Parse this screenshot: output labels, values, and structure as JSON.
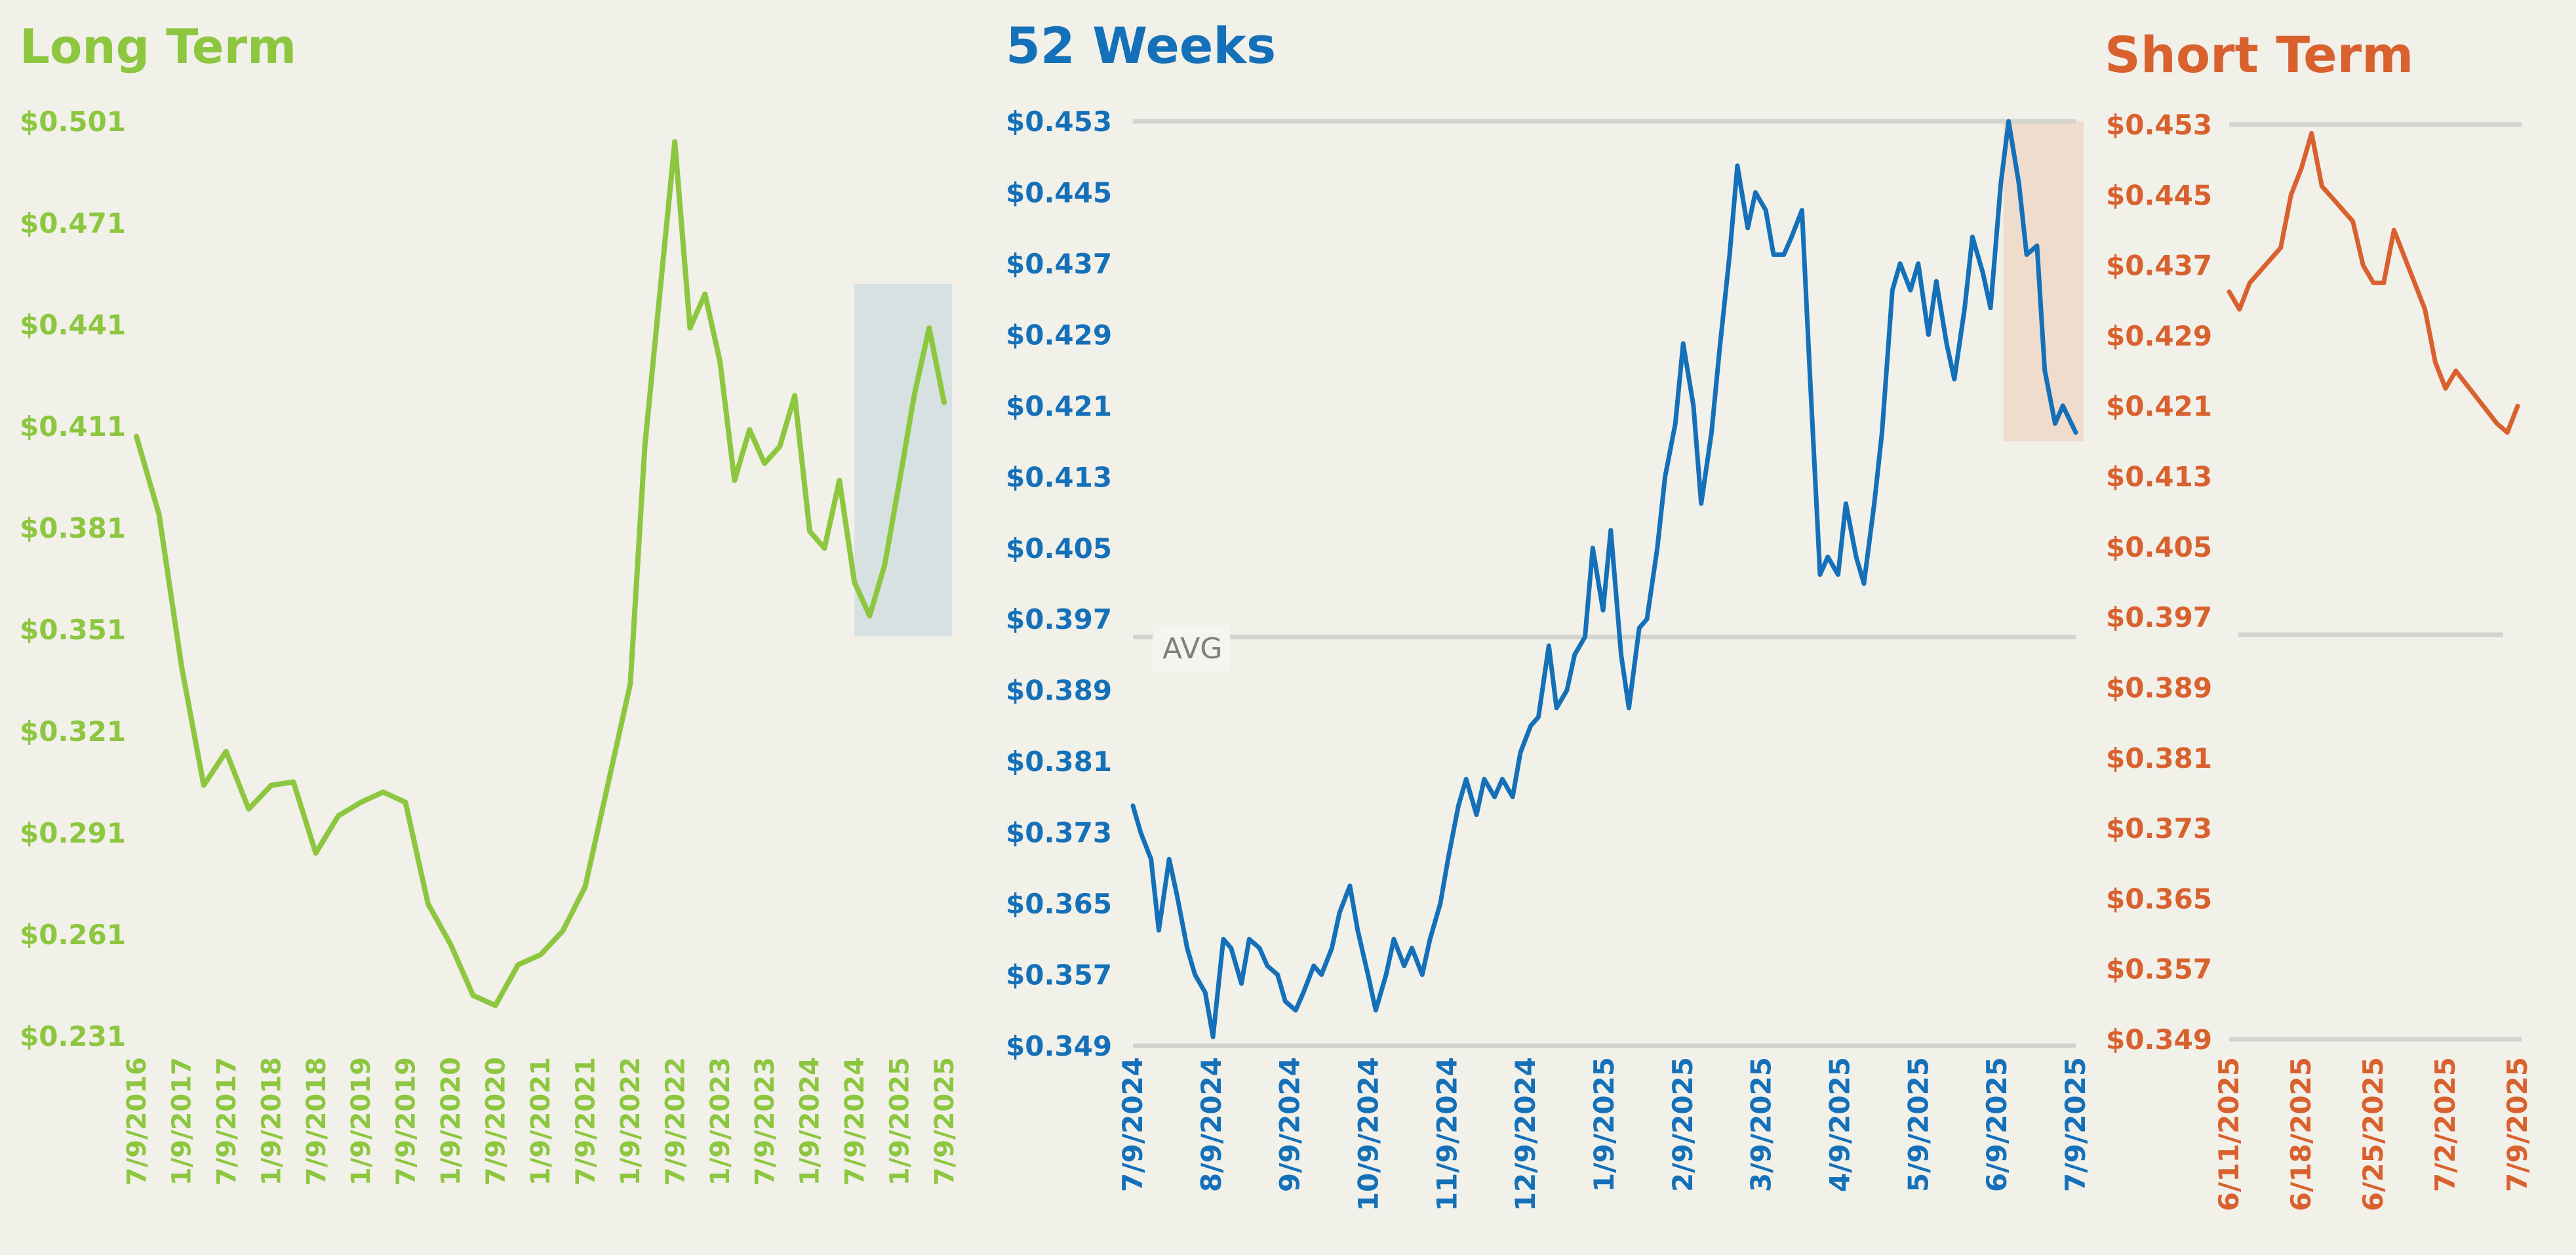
{
  "colors": {
    "background": "#f1f0e9",
    "long_term": "#8dc63f",
    "weeks52": "#1470b8",
    "short_term": "#d8612e",
    "gridline": "#d3d3d0",
    "long_highlight": "#d7e1e2",
    "weeks52_highlight": "#efdccd",
    "avg_text": "#7f7f7f"
  },
  "chart_data": [
    {
      "id": "long_term",
      "type": "line",
      "title": "Long Term",
      "y_ticks": [
        "$0.501",
        "$0.471",
        "$0.441",
        "$0.411",
        "$0.381",
        "$0.351",
        "$0.321",
        "$0.291",
        "$0.261",
        "$0.231"
      ],
      "x_ticks": [
        "7/9/2016",
        "1/9/2017",
        "7/9/2017",
        "1/9/2018",
        "7/9/2018",
        "1/9/2019",
        "7/9/2019",
        "1/9/2020",
        "7/9/2020",
        "1/9/2021",
        "7/9/2021",
        "1/9/2022",
        "7/9/2022",
        "1/9/2023",
        "7/9/2023",
        "1/9/2024",
        "7/9/2024",
        "1/9/2025",
        "7/9/2025"
      ],
      "ylim": [
        0.231,
        0.501
      ],
      "xlim": [
        "7/9/2016",
        "7/9/2025"
      ],
      "grid": false,
      "highlight_region": {
        "x": [
          "7/9/2024",
          "7/9/2025"
        ],
        "y": [
          0.349,
          0.453
        ]
      },
      "series": [
        {
          "x": [
            "7/9/2016",
            "10/9/2016",
            "1/9/2017",
            "4/9/2017",
            "7/9/2017",
            "10/9/2017",
            "1/9/2018",
            "4/9/2018",
            "7/9/2018",
            "10/9/2018",
            "1/9/2019",
            "4/9/2019",
            "7/9/2019",
            "10/9/2019",
            "1/9/2020",
            "4/9/2020",
            "7/9/2020",
            "10/9/2020",
            "1/9/2021",
            "4/9/2021",
            "7/9/2021",
            "10/9/2021",
            "1/9/2022",
            "3/9/2022",
            "5/9/2022",
            "7/9/2022",
            "9/9/2022",
            "11/9/2022",
            "1/9/2023",
            "3/9/2023",
            "5/9/2023",
            "7/9/2023",
            "9/9/2023",
            "11/9/2023",
            "1/9/2024",
            "3/9/2024",
            "5/9/2024",
            "7/9/2024",
            "9/9/2024",
            "11/9/2024",
            "1/9/2025",
            "3/9/2025",
            "5/9/2025",
            "7/9/2025"
          ],
          "values": [
            0.408,
            0.385,
            0.34,
            0.305,
            0.315,
            0.298,
            0.305,
            0.306,
            0.285,
            0.296,
            0.3,
            0.303,
            0.3,
            0.27,
            0.258,
            0.243,
            0.24,
            0.252,
            0.255,
            0.262,
            0.275,
            0.305,
            0.335,
            0.405,
            0.45,
            0.495,
            0.44,
            0.45,
            0.43,
            0.395,
            0.41,
            0.4,
            0.405,
            0.42,
            0.38,
            0.375,
            0.395,
            0.365,
            0.355,
            0.37,
            0.395,
            0.42,
            0.44,
            0.418
          ]
        }
      ]
    },
    {
      "id": "weeks52",
      "type": "line",
      "title": "52 Weeks",
      "y_ticks": [
        "$0.453",
        "$0.445",
        "$0.437",
        "$0.429",
        "$0.421",
        "$0.413",
        "$0.405",
        "$0.397",
        "$0.389",
        "$0.381",
        "$0.373",
        "$0.365",
        "$0.357",
        "$0.349"
      ],
      "x_ticks": [
        "7/9/2024",
        "8/9/2024",
        "9/9/2024",
        "10/9/2024",
        "11/9/2024",
        "12/9/2024",
        "1/9/2025",
        "2/9/2025",
        "3/9/2025",
        "4/9/2025",
        "5/9/2025",
        "6/9/2025",
        "7/9/2025"
      ],
      "ylim": [
        0.349,
        0.453
      ],
      "xlim": [
        "7/9/2024",
        "7/9/2025"
      ],
      "grid": false,
      "reference_lines": [
        {
          "value": 0.453,
          "label": ""
        },
        {
          "value": 0.395,
          "label": "AVG"
        },
        {
          "value": 0.349,
          "label": ""
        }
      ],
      "highlight_region": {
        "x": [
          "6/11/2025",
          "7/9/2025"
        ],
        "y": [
          0.417,
          0.453
        ]
      },
      "series": [
        {
          "x": [
            "7/9/2024",
            "7/12/2024",
            "7/16/2024",
            "7/19/2024",
            "7/23/2024",
            "7/26/2024",
            "7/30/2024",
            "8/2/2024",
            "8/6/2024",
            "8/9/2024",
            "8/13/2024",
            "8/16/2024",
            "8/20/2024",
            "8/23/2024",
            "8/27/2024",
            "8/30/2024",
            "9/3/2024",
            "9/6/2024",
            "9/10/2024",
            "9/13/2024",
            "9/17/2024",
            "9/20/2024",
            "9/24/2024",
            "9/27/2024",
            "10/1/2024",
            "10/4/2024",
            "10/8/2024",
            "10/11/2024",
            "10/15/2024",
            "10/18/2024",
            "10/22/2024",
            "10/25/2024",
            "10/29/2024",
            "11/1/2024",
            "11/5/2024",
            "11/8/2024",
            "11/12/2024",
            "11/15/2024",
            "11/19/2024",
            "11/22/2024",
            "11/26/2024",
            "11/29/2024",
            "12/3/2024",
            "12/6/2024",
            "12/10/2024",
            "12/13/2024",
            "12/17/2024",
            "12/20/2024",
            "12/24/2024",
            "12/27/2024",
            "12/31/2024",
            "1/3/2025",
            "1/7/2025",
            "1/10/2025",
            "1/14/2025",
            "1/17/2025",
            "1/21/2025",
            "1/24/2025",
            "1/28/2025",
            "1/31/2025",
            "2/4/2025",
            "2/7/2025",
            "2/11/2025",
            "2/14/2025",
            "2/18/2025",
            "2/21/2025",
            "2/25/2025",
            "2/28/2025",
            "3/4/2025",
            "3/7/2025",
            "3/11/2025",
            "3/14/2025",
            "3/18/2025",
            "3/21/2025",
            "3/25/2025",
            "3/28/2025",
            "4/1/2025",
            "4/4/2025",
            "4/8/2025",
            "4/11/2025",
            "4/15/2025",
            "4/18/2025",
            "4/22/2025",
            "4/25/2025",
            "4/29/2025",
            "5/2/2025",
            "5/6/2025",
            "5/9/2025",
            "5/13/2025",
            "5/16/2025",
            "5/20/2025",
            "5/23/2025",
            "5/27/2025",
            "5/30/2025",
            "6/3/2025",
            "6/6/2025",
            "6/10/2025",
            "6/13/2025",
            "6/17/2025",
            "6/20/2025",
            "6/24/2025",
            "6/27/2025",
            "7/1/2025",
            "7/4/2025",
            "7/9/2025"
          ],
          "values": [
            0.376,
            0.373,
            0.37,
            0.362,
            0.37,
            0.366,
            0.36,
            0.357,
            0.355,
            0.35,
            0.361,
            0.36,
            0.356,
            0.361,
            0.36,
            0.358,
            0.357,
            0.354,
            0.353,
            0.355,
            0.358,
            0.357,
            0.36,
            0.364,
            0.367,
            0.362,
            0.357,
            0.353,
            0.357,
            0.361,
            0.358,
            0.36,
            0.357,
            0.361,
            0.365,
            0.37,
            0.376,
            0.379,
            0.375,
            0.379,
            0.377,
            0.379,
            0.377,
            0.382,
            0.385,
            0.386,
            0.394,
            0.387,
            0.389,
            0.393,
            0.395,
            0.405,
            0.398,
            0.407,
            0.393,
            0.387,
            0.396,
            0.397,
            0.405,
            0.413,
            0.419,
            0.428,
            0.421,
            0.41,
            0.418,
            0.427,
            0.438,
            0.448,
            0.441,
            0.445,
            0.443,
            0.438,
            0.438,
            0.44,
            0.443,
            0.425,
            0.402,
            0.404,
            0.402,
            0.41,
            0.404,
            0.401,
            0.41,
            0.418,
            0.434,
            0.437,
            0.434,
            0.437,
            0.429,
            0.435,
            0.428,
            0.424,
            0.432,
            0.44,
            0.436,
            0.432,
            0.446,
            0.453,
            0.446,
            0.438,
            0.439,
            0.425,
            0.419,
            0.421,
            0.418
          ]
        }
      ]
    },
    {
      "id": "short_term",
      "type": "line",
      "title": "Short Term",
      "y_ticks": [
        "$0.453",
        "$0.445",
        "$0.437",
        "$0.429",
        "$0.421",
        "$0.413",
        "$0.405",
        "$0.397",
        "$0.389",
        "$0.381",
        "$0.373",
        "$0.365",
        "$0.357",
        "$0.349"
      ],
      "x_ticks": [
        "6/11/2025",
        "6/18/2025",
        "6/25/2025",
        "7/2/2025",
        "7/9/2025"
      ],
      "ylim": [
        0.349,
        0.453
      ],
      "xlim": [
        "6/11/2025",
        "7/9/2025"
      ],
      "grid": false,
      "reference_lines": [
        {
          "value": 0.453,
          "label": ""
        },
        {
          "value": 0.395,
          "label": ""
        },
        {
          "value": 0.349,
          "label": ""
        }
      ],
      "series": [
        {
          "x": [
            "6/11/2025",
            "6/12/2025",
            "6/13/2025",
            "6/16/2025",
            "6/17/2025",
            "6/18/2025",
            "6/19/2025",
            "6/20/2025",
            "6/23/2025",
            "6/24/2025",
            "6/25/2025",
            "6/26/2025",
            "6/27/2025",
            "6/30/2025",
            "7/1/2025",
            "7/2/2025",
            "7/3/2025",
            "7/7/2025",
            "7/8/2025",
            "7/9/2025"
          ],
          "values": [
            0.434,
            0.432,
            0.435,
            0.439,
            0.445,
            0.448,
            0.452,
            0.446,
            0.442,
            0.437,
            0.435,
            0.435,
            0.441,
            0.432,
            0.426,
            0.423,
            0.425,
            0.419,
            0.418,
            0.421
          ]
        }
      ]
    }
  ]
}
